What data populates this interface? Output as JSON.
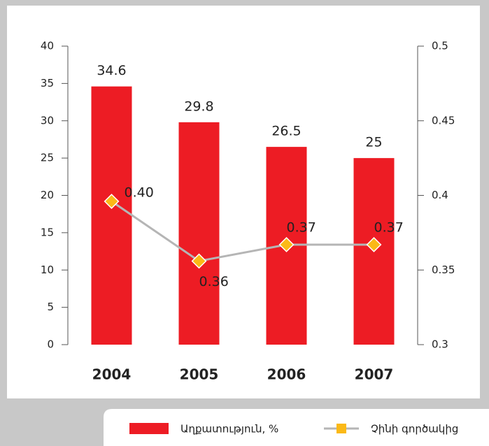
{
  "chart_data": {
    "type": "bar",
    "categories": [
      "2004",
      "2005",
      "2006",
      "2007"
    ],
    "series": [
      {
        "name": "Աղքատություն, %",
        "color": "#ed1c24",
        "values": [
          34.6,
          29.8,
          26.5,
          25
        ]
      },
      {
        "name": "Չինի գործակից",
        "type": "line",
        "axis": "y2",
        "color": "#b5b5b5",
        "marker_color": "#fbb917",
        "values": [
          0.396,
          0.356,
          0.367,
          0.367
        ],
        "value_labels": [
          "0.40",
          "0.36",
          "0.37",
          "0.37"
        ]
      }
    ],
    "ylim": [
      0,
      40
    ],
    "yticks": [
      0,
      5,
      10,
      15,
      20,
      25,
      30,
      35,
      40
    ],
    "y2lim": [
      0.3,
      0.5
    ],
    "y2ticks": [
      0.3,
      0.35,
      0.4,
      0.45,
      0.5
    ],
    "legend": "bottom-right"
  }
}
